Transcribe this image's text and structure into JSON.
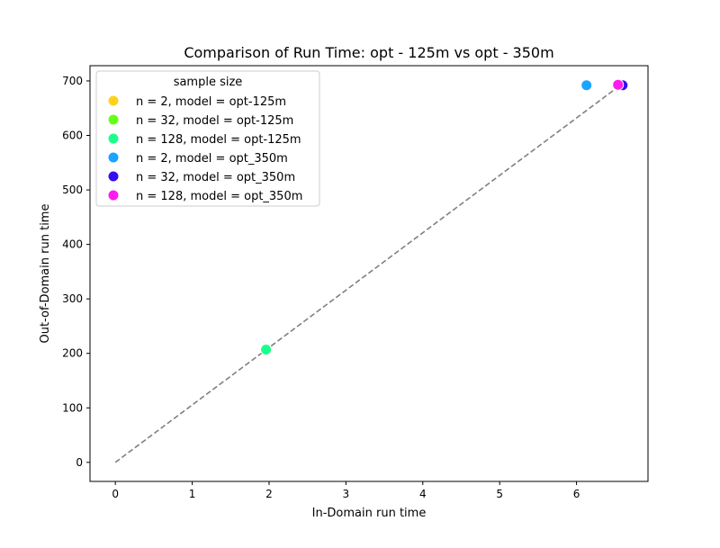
{
  "chart_data": {
    "type": "scatter",
    "title": "Comparison of Run Time: opt - 125m vs opt - 350m",
    "xlabel": "In-Domain run time",
    "ylabel": "Out-of-Domain run time",
    "xlim": [
      -0.33,
      6.93
    ],
    "ylim": [
      -35,
      728
    ],
    "xticks": [
      0,
      1,
      2,
      3,
      4,
      5,
      6
    ],
    "yticks": [
      0,
      100,
      200,
      300,
      400,
      500,
      600,
      700
    ],
    "grid": false,
    "legend": {
      "title": "sample size",
      "placement": "upper left"
    },
    "reference_line": {
      "style": "dashed",
      "color": "#808080",
      "from": [
        0,
        0
      ],
      "to": [
        6.55,
        690
      ]
    },
    "series": [
      {
        "name": "n = 2, model = opt-125m",
        "color": "#ffd11a",
        "points": []
      },
      {
        "name": "n = 32, model = opt-125m",
        "color": "#66ff1a",
        "points": []
      },
      {
        "name": "n = 128, model = opt-125m",
        "color": "#1aff8c",
        "points": [
          [
            1.96,
            207
          ]
        ]
      },
      {
        "name": "n = 2, model = opt_350m",
        "color": "#1aa3ff",
        "points": [
          [
            6.13,
            692
          ]
        ]
      },
      {
        "name": "n = 32, model = opt_350m",
        "color": "#3311ee",
        "points": [
          [
            6.6,
            692
          ]
        ]
      },
      {
        "name": "n = 128, model = opt_350m",
        "color": "#ff1aee",
        "points": [
          [
            6.54,
            693
          ]
        ]
      }
    ]
  }
}
